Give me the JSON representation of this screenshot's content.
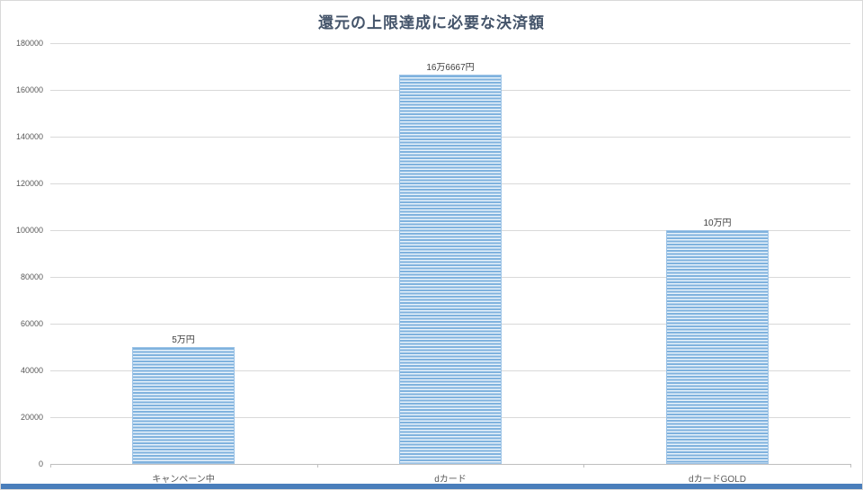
{
  "chart_data": {
    "type": "bar",
    "title": "還元の上限達成に必要な決済額",
    "categories": [
      "キャンペーン中",
      "dカード",
      "dカードGOLD"
    ],
    "values": [
      50000,
      166667,
      100000
    ],
    "data_labels": [
      "5万円",
      "16万6667円",
      "10万円"
    ],
    "xlabel": "",
    "ylabel": "",
    "ylim": [
      0,
      180000
    ],
    "ytick_step": 20000,
    "yticks": [
      0,
      20000,
      40000,
      60000,
      80000,
      100000,
      120000,
      140000,
      160000,
      180000
    ],
    "grid": "horizontal",
    "legend": "none",
    "bar_fill_color": "#7fb2de",
    "bar_stripe_color": "#e9f3fb",
    "bar_border_color": "#9cc3e6",
    "title_color": "#44546a",
    "gridline_color": "#d9d9d9",
    "axis_text_color": "#595959"
  },
  "window": {
    "bottom_edge_color": "#4a7ebb"
  }
}
